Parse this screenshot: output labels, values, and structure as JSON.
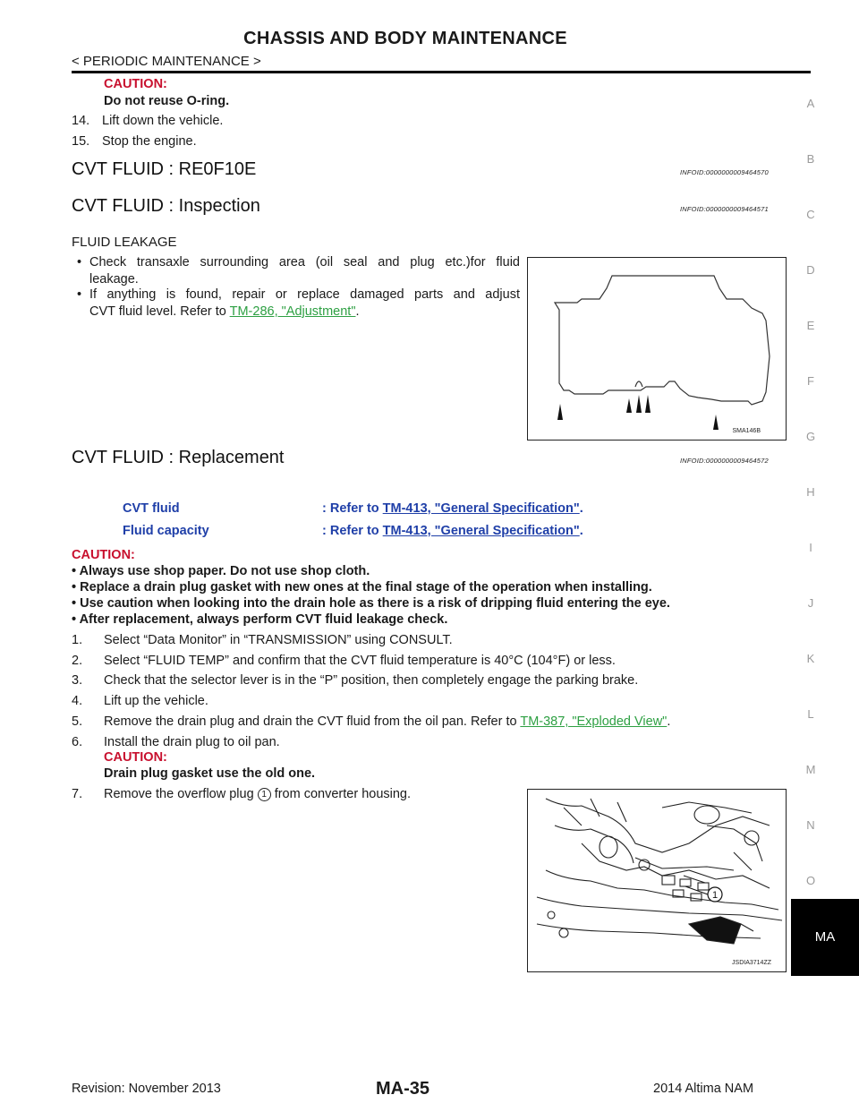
{
  "header": {
    "title": "CHASSIS AND BODY MAINTENANCE",
    "breadcrumb": "< PERIODIC MAINTENANCE >"
  },
  "top": {
    "caution_label": "CAUTION:",
    "caution_text": "Do not reuse O-ring.",
    "steps": [
      {
        "num": "14.",
        "text": "Lift down the vehicle."
      },
      {
        "num": "15.",
        "text": "Stop the engine."
      }
    ]
  },
  "sections": {
    "re0f10e": {
      "title": "CVT FLUID : RE0F10E",
      "infoid": "INFOID:0000000009464570"
    },
    "inspection": {
      "title": "CVT FLUID : Inspection",
      "infoid": "INFOID:0000000009464571"
    },
    "replacement": {
      "title": "CVT FLUID : Replacement",
      "infoid": "INFOID:0000000009464572"
    }
  },
  "inspection": {
    "subheading": "FLUID LEAKAGE",
    "bullet1_line1": "Check transaxle surrounding area (oil seal and plug etc.)for fluid",
    "bullet1_line2": "leakage.",
    "bullet2_line1": "If anything is found, repair or replace damaged parts and adjust",
    "bullet2_line2_pre": "CVT fluid level. Refer to ",
    "bullet2_link": "TM-286, \"Adjustment\"",
    "bullet2_post": ".",
    "figure_label": "SMA146B"
  },
  "replacement": {
    "specs": [
      {
        "label": "CVT fluid",
        "prefix": ": Refer to ",
        "link": "TM-413, \"General Specification\"",
        "suffix": "."
      },
      {
        "label": "Fluid capacity",
        "prefix": ": Refer to ",
        "link": "TM-413, \"General Specification\"",
        "suffix": "."
      }
    ],
    "caution_label": "CAUTION:",
    "cautions": [
      "• Always use shop paper. Do not use shop cloth.",
      "• Replace a drain plug gasket with new ones at the final stage of the operation when installing.",
      "• Use caution when looking into the drain hole as there is a risk of dripping fluid entering the eye.",
      "• After replacement, always perform CVT fluid leakage check."
    ],
    "step1": {
      "num": "1.",
      "text": "Select “Data Monitor” in “TRANSMISSION” using CONSULT."
    },
    "step2": {
      "num": "2.",
      "text": "Select “FLUID TEMP” and confirm that the CVT fluid temperature is 40°C (104°F) or less."
    },
    "step3": {
      "num": "3.",
      "text": "Check that the selector lever is in the “P” position, then completely engage the parking brake."
    },
    "step4": {
      "num": "4.",
      "text": "Lift up the vehicle."
    },
    "step5": {
      "num": "5.",
      "text": "Remove the drain plug and drain the CVT fluid from the oil pan. Refer to ",
      "link": "TM-387, \"Exploded View\"",
      "suffix": "."
    },
    "step6": {
      "num": "6.",
      "text": "Install the drain plug to oil pan.",
      "caution_label": "CAUTION:",
      "caution_text": "Drain plug gasket use the old one."
    },
    "step7": {
      "num": "7.",
      "text_pre": "Remove the overflow plug ",
      "marker": "1",
      "text_post": " from converter housing."
    },
    "figure_label": "JSDIA3714ZZ",
    "figure_callout": "1"
  },
  "side_index": [
    "A",
    "B",
    "C",
    "D",
    "E",
    "F",
    "G",
    "H",
    "I",
    "J",
    "K",
    "L",
    "M",
    "N",
    "O"
  ],
  "side_tab": "MA",
  "footer": {
    "revision": "Revision: November 2013",
    "page": "MA-35",
    "model": "2014 Altima NAM"
  }
}
